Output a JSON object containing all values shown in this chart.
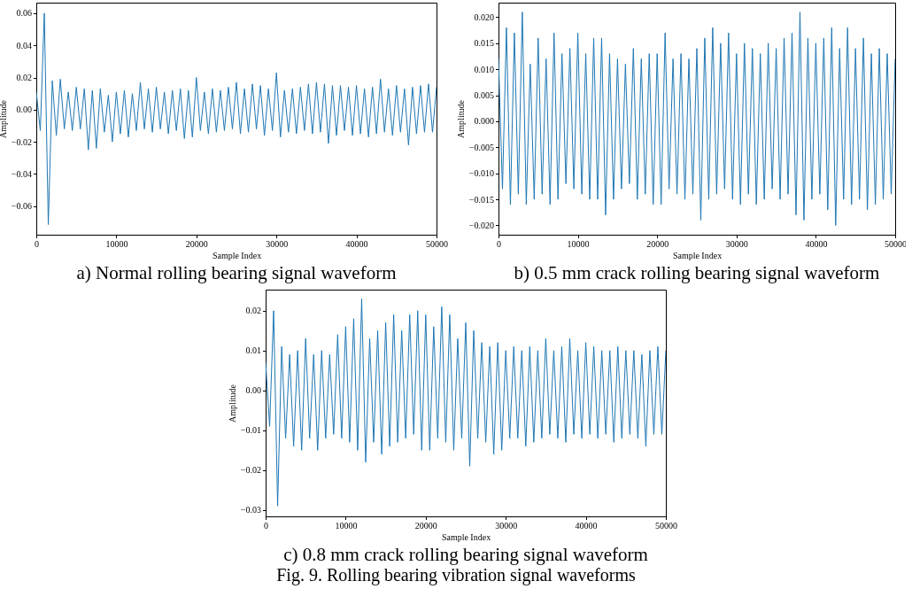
{
  "chart_data": [
    {
      "type": "line",
      "title": "a) Normal rolling bearing signal waveform",
      "xlabel": "Sample Index",
      "ylabel": "Amplitude",
      "grid": false,
      "xlim": [
        0,
        50000
      ],
      "ylim": [
        -0.0778,
        0.0666
      ],
      "xticks": [
        0,
        10000,
        20000,
        30000,
        40000,
        50000
      ],
      "yticks": [
        {
          "value": -0.06,
          "label": "−0.06"
        },
        {
          "value": -0.04,
          "label": "−0.04"
        },
        {
          "value": -0.02,
          "label": "−0.02"
        },
        {
          "value": 0,
          "label": "0.00"
        },
        {
          "value": 0.02,
          "label": "0.02"
        },
        {
          "value": 0.04,
          "label": "0.04"
        },
        {
          "value": 0.06,
          "label": "0.06"
        }
      ],
      "x": [
        0,
        500,
        1000,
        1500,
        2000,
        2500,
        3000,
        3500,
        4000,
        4500,
        5000,
        5500,
        6000,
        6500,
        7000,
        7500,
        8000,
        8500,
        9000,
        9500,
        10000,
        10500,
        11000,
        11500,
        12000,
        12500,
        13000,
        13500,
        14000,
        14500,
        15000,
        15500,
        16000,
        16500,
        17000,
        17500,
        18000,
        18500,
        19000,
        19500,
        20000,
        20500,
        21000,
        21500,
        22000,
        22500,
        23000,
        23500,
        24000,
        24500,
        25000,
        25500,
        26000,
        26500,
        27000,
        27500,
        28000,
        28500,
        29000,
        29500,
        30000,
        30500,
        31000,
        31500,
        32000,
        32500,
        33000,
        33500,
        34000,
        34500,
        35000,
        35500,
        36000,
        36500,
        37000,
        37500,
        38000,
        38500,
        39000,
        39500,
        40000,
        40500,
        41000,
        41500,
        42000,
        42500,
        43000,
        43500,
        44000,
        44500,
        45000,
        45500,
        46000,
        46500,
        47000,
        47500,
        48000,
        48500,
        49000,
        49500,
        50000
      ],
      "series": [
        {
          "color": "#1f77b4",
          "values": [
            0.011,
            -0.013,
            0.06,
            -0.0715,
            0.018,
            -0.016,
            0.019,
            -0.012,
            0.011,
            -0.013,
            0.014,
            -0.012,
            0.013,
            -0.025,
            0.012,
            -0.024,
            0.013,
            -0.014,
            0.009,
            -0.02,
            0.011,
            -0.015,
            0.012,
            -0.017,
            0.01,
            -0.013,
            0.017,
            -0.012,
            0.013,
            -0.014,
            0.014,
            -0.012,
            0.011,
            -0.015,
            0.012,
            -0.013,
            0.013,
            -0.018,
            0.012,
            -0.017,
            0.02,
            -0.013,
            0.011,
            -0.015,
            0.013,
            -0.014,
            0.012,
            -0.013,
            0.014,
            -0.012,
            0.017,
            -0.015,
            0.013,
            -0.014,
            0.016,
            -0.012,
            0.015,
            -0.016,
            0.013,
            -0.013,
            0.023,
            -0.017,
            0.012,
            -0.014,
            0.013,
            -0.015,
            0.014,
            -0.013,
            0.016,
            -0.015,
            0.017,
            -0.014,
            0.016,
            -0.021,
            0.015,
            -0.016,
            0.015,
            -0.013,
            0.014,
            -0.016,
            0.015,
            -0.015,
            0.013,
            -0.017,
            0.014,
            -0.015,
            0.019,
            -0.014,
            0.013,
            -0.016,
            0.015,
            -0.014,
            0.013,
            -0.022,
            0.014,
            -0.015,
            0.015,
            -0.014,
            0.016,
            -0.014,
            0.014
          ]
        }
      ]
    },
    {
      "type": "line",
      "title": "b) 0.5 mm crack rolling bearing signal waveform",
      "xlabel": "Sample Index",
      "ylabel": "Amplitude",
      "grid": false,
      "xlim": [
        0,
        50000
      ],
      "ylim": [
        -0.0218,
        0.0228
      ],
      "xticks": [
        0,
        10000,
        20000,
        30000,
        40000,
        50000
      ],
      "yticks": [
        {
          "value": -0.02,
          "label": "−0.020"
        },
        {
          "value": -0.015,
          "label": "−0.015"
        },
        {
          "value": -0.01,
          "label": "−0.010"
        },
        {
          "value": -0.005,
          "label": "−0.005"
        },
        {
          "value": 0,
          "label": "0.000"
        },
        {
          "value": 0.005,
          "label": "0.005"
        },
        {
          "value": 0.01,
          "label": "0.010"
        },
        {
          "value": 0.015,
          "label": "0.015"
        },
        {
          "value": 0.02,
          "label": "0.020"
        }
      ],
      "x": [
        0,
        500,
        1000,
        1500,
        2000,
        2500,
        3000,
        3500,
        4000,
        4500,
        5000,
        5500,
        6000,
        6500,
        7000,
        7500,
        8000,
        8500,
        9000,
        9500,
        10000,
        10500,
        11000,
        11500,
        12000,
        12500,
        13000,
        13500,
        14000,
        14500,
        15000,
        15500,
        16000,
        16500,
        17000,
        17500,
        18000,
        18500,
        19000,
        19500,
        20000,
        20500,
        21000,
        21500,
        22000,
        22500,
        23000,
        23500,
        24000,
        24500,
        25000,
        25500,
        26000,
        26500,
        27000,
        27500,
        28000,
        28500,
        29000,
        29500,
        30000,
        30500,
        31000,
        31500,
        32000,
        32500,
        33000,
        33500,
        34000,
        34500,
        35000,
        35500,
        36000,
        36500,
        37000,
        37500,
        38000,
        38500,
        39000,
        39500,
        40000,
        40500,
        41000,
        41500,
        42000,
        42500,
        43000,
        43500,
        44000,
        44500,
        45000,
        45500,
        46000,
        46500,
        47000,
        47500,
        48000,
        48500,
        49000,
        49500,
        50000
      ],
      "series": [
        {
          "color": "#1f77b4",
          "values": [
            0.012,
            -0.013,
            0.018,
            -0.016,
            0.017,
            -0.014,
            0.021,
            -0.016,
            0.011,
            -0.015,
            0.016,
            -0.014,
            0.012,
            -0.016,
            0.017,
            -0.015,
            0.013,
            -0.012,
            0.014,
            -0.013,
            0.017,
            -0.014,
            0.013,
            -0.015,
            0.016,
            -0.015,
            0.016,
            -0.018,
            0.013,
            -0.015,
            0.012,
            -0.013,
            0.011,
            -0.012,
            0.014,
            -0.015,
            0.012,
            -0.014,
            0.013,
            -0.016,
            0.013,
            -0.016,
            0.017,
            -0.013,
            0.012,
            -0.014,
            0.013,
            -0.015,
            0.012,
            -0.014,
            0.014,
            -0.019,
            0.016,
            -0.015,
            0.018,
            -0.014,
            0.015,
            -0.013,
            0.017,
            -0.015,
            0.013,
            -0.016,
            0.015,
            -0.014,
            0.014,
            -0.016,
            0.013,
            -0.015,
            0.015,
            -0.013,
            0.014,
            -0.015,
            0.016,
            -0.014,
            0.017,
            -0.018,
            0.021,
            -0.019,
            0.016,
            -0.015,
            0.015,
            -0.014,
            0.016,
            -0.017,
            0.018,
            -0.02,
            0.014,
            -0.015,
            0.018,
            -0.016,
            0.014,
            -0.015,
            0.016,
            -0.017,
            0.013,
            -0.016,
            0.014,
            -0.015,
            0.013,
            -0.014,
            0.012
          ]
        }
      ]
    },
    {
      "type": "line",
      "title": "c) 0.8 mm crack rolling bearing signal waveform",
      "xlabel": "Sample Index",
      "ylabel": "Amplitude",
      "grid": false,
      "annotations": [
        "Fig. 9. Rolling bearing vibration signal waveforms"
      ],
      "xlim": [
        0,
        50000
      ],
      "ylim": [
        -0.0316,
        0.0253
      ],
      "xticks": [
        0,
        10000,
        20000,
        30000,
        40000,
        50000
      ],
      "yticks": [
        {
          "value": -0.03,
          "label": "−0.03"
        },
        {
          "value": -0.02,
          "label": "−0.02"
        },
        {
          "value": -0.01,
          "label": "−0.01"
        },
        {
          "value": 0,
          "label": "0.00"
        },
        {
          "value": 0.01,
          "label": "0.01"
        },
        {
          "value": 0.02,
          "label": "0.02"
        }
      ],
      "x": [
        0,
        500,
        1000,
        1500,
        2000,
        2500,
        3000,
        3500,
        4000,
        4500,
        5000,
        5500,
        6000,
        6500,
        7000,
        7500,
        8000,
        8500,
        9000,
        9500,
        10000,
        10500,
        11000,
        11500,
        12000,
        12500,
        13000,
        13500,
        14000,
        14500,
        15000,
        15500,
        16000,
        16500,
        17000,
        17500,
        18000,
        18500,
        19000,
        19500,
        20000,
        20500,
        21000,
        21500,
        22000,
        22500,
        23000,
        23500,
        24000,
        24500,
        25000,
        25500,
        26000,
        26500,
        27000,
        27500,
        28000,
        28500,
        29000,
        29500,
        30000,
        30500,
        31000,
        31500,
        32000,
        32500,
        33000,
        33500,
        34000,
        34500,
        35000,
        35500,
        36000,
        36500,
        37000,
        37500,
        38000,
        38500,
        39000,
        39500,
        40000,
        40500,
        41000,
        41500,
        42000,
        42500,
        43000,
        43500,
        44000,
        44500,
        45000,
        45500,
        46000,
        46500,
        47000,
        47500,
        48000,
        48500,
        49000,
        49500,
        50000
      ],
      "series": [
        {
          "color": "#1f77b4",
          "values": [
            0.007,
            -0.009,
            0.02,
            -0.029,
            0.011,
            -0.012,
            0.009,
            -0.014,
            0.01,
            -0.015,
            0.013,
            -0.012,
            0.009,
            -0.015,
            0.01,
            -0.012,
            0.009,
            -0.011,
            0.014,
            -0.012,
            0.016,
            -0.013,
            0.018,
            -0.015,
            0.023,
            -0.018,
            0.013,
            -0.013,
            0.015,
            -0.016,
            0.017,
            -0.014,
            0.019,
            -0.013,
            0.015,
            -0.012,
            0.019,
            -0.011,
            0.02,
            -0.015,
            0.019,
            -0.015,
            0.016,
            -0.012,
            0.021,
            -0.013,
            0.019,
            -0.015,
            0.013,
            -0.012,
            0.017,
            -0.019,
            0.015,
            -0.012,
            0.012,
            -0.013,
            0.011,
            -0.016,
            0.012,
            -0.015,
            0.01,
            -0.012,
            0.011,
            -0.012,
            0.01,
            -0.014,
            0.011,
            -0.013,
            0.01,
            -0.012,
            0.013,
            -0.011,
            0.01,
            -0.012,
            0.011,
            -0.013,
            0.013,
            -0.011,
            0.01,
            -0.012,
            0.012,
            -0.011,
            0.011,
            -0.012,
            0.01,
            -0.011,
            0.01,
            -0.013,
            0.011,
            -0.012,
            0.01,
            -0.011,
            0.01,
            -0.012,
            0.009,
            -0.014,
            0.01,
            -0.011,
            0.011,
            -0.011,
            0.01
          ]
        }
      ]
    }
  ]
}
